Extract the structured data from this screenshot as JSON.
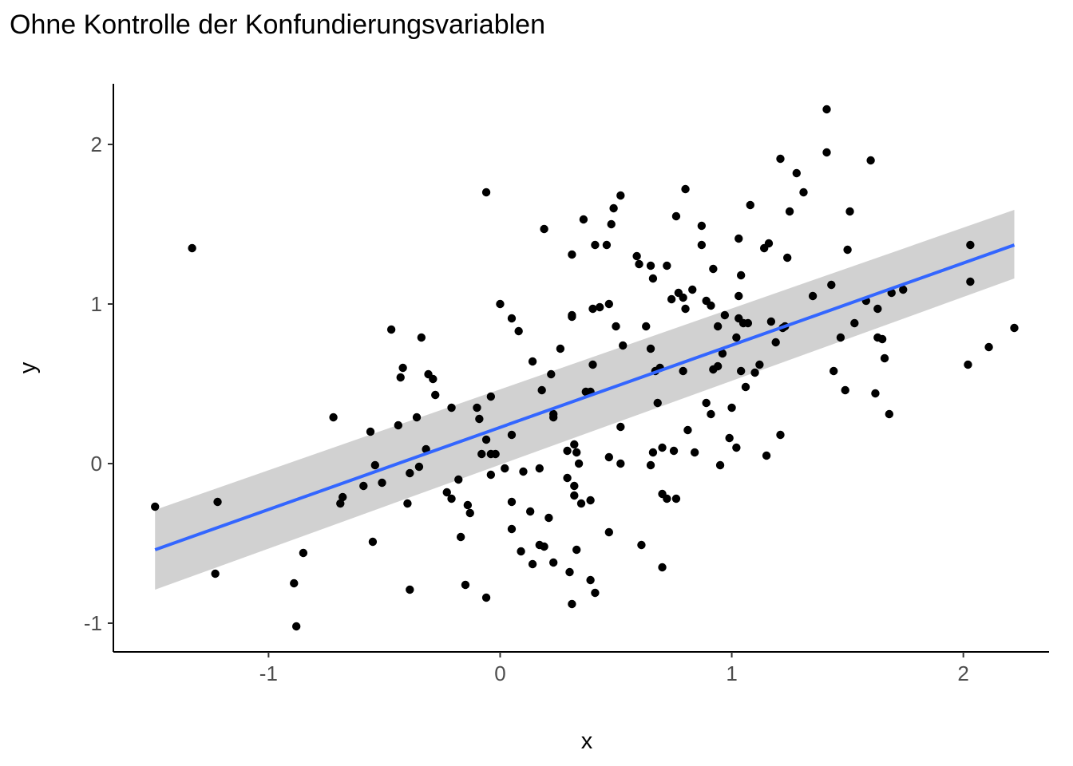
{
  "chart_data": {
    "type": "scatter",
    "title": "Ohne Kontrolle der Konfundierungsvariablen",
    "xlabel": "x",
    "ylabel": "y",
    "xlim": [
      -1.67,
      2.37
    ],
    "ylim": [
      -1.18,
      2.38
    ],
    "x_ticks": [
      -1,
      0,
      1,
      2
    ],
    "x_tick_labels": [
      "-1",
      "0",
      "1",
      "2"
    ],
    "y_ticks": [
      -1,
      0,
      1,
      2
    ],
    "y_tick_labels": [
      "-1",
      "0",
      "1",
      "2"
    ],
    "grid": false,
    "legend": "none",
    "colors": {
      "points": "#000000",
      "fit_line": "#3366ff",
      "ribbon": "#cccccc",
      "axis": "#000000"
    },
    "fit": {
      "method": "lm",
      "x": [
        -1.49,
        2.22
      ],
      "y": [
        -0.54,
        1.37
      ],
      "ci_lower": [
        -0.79,
        1.16
      ],
      "ci_upper": [
        -0.29,
        1.59
      ]
    },
    "points": [
      [
        -1.49,
        -0.27
      ],
      [
        -1.33,
        1.35
      ],
      [
        -1.22,
        -0.24
      ],
      [
        -1.23,
        -0.69
      ],
      [
        -0.89,
        -0.75
      ],
      [
        -0.88,
        -1.02
      ],
      [
        -0.85,
        -0.56
      ],
      [
        -0.72,
        0.29
      ],
      [
        -0.69,
        -0.25
      ],
      [
        -0.68,
        -0.21
      ],
      [
        -0.59,
        -0.14
      ],
      [
        -0.56,
        0.2
      ],
      [
        -0.55,
        -0.49
      ],
      [
        -0.54,
        -0.01
      ],
      [
        -0.51,
        -0.12
      ],
      [
        -0.47,
        0.84
      ],
      [
        -0.44,
        0.24
      ],
      [
        -0.43,
        0.54
      ],
      [
        -0.42,
        0.6
      ],
      [
        -0.4,
        -0.25
      ],
      [
        -0.39,
        -0.06
      ],
      [
        -0.39,
        -0.79
      ],
      [
        -0.36,
        0.29
      ],
      [
        -0.35,
        -0.02
      ],
      [
        -0.34,
        0.79
      ],
      [
        -0.32,
        0.09
      ],
      [
        -0.31,
        0.56
      ],
      [
        -0.29,
        0.53
      ],
      [
        -0.28,
        0.43
      ],
      [
        -0.23,
        -0.18
      ],
      [
        -0.21,
        0.35
      ],
      [
        -0.21,
        -0.22
      ],
      [
        -0.18,
        -0.1
      ],
      [
        -0.17,
        -0.46
      ],
      [
        -0.15,
        -0.76
      ],
      [
        -0.14,
        -0.26
      ],
      [
        -0.13,
        -0.31
      ],
      [
        -0.1,
        0.35
      ],
      [
        -0.09,
        0.28
      ],
      [
        -0.08,
        0.06
      ],
      [
        -0.06,
        0.15
      ],
      [
        -0.06,
        1.7
      ],
      [
        -0.06,
        -0.84
      ],
      [
        -0.04,
        0.06
      ],
      [
        -0.04,
        0.42
      ],
      [
        -0.04,
        -0.07
      ],
      [
        -0.02,
        0.06
      ],
      [
        0.0,
        1.0
      ],
      [
        0.02,
        -0.03
      ],
      [
        0.05,
        0.91
      ],
      [
        0.05,
        -0.41
      ],
      [
        0.05,
        -0.24
      ],
      [
        0.05,
        0.18
      ],
      [
        0.08,
        0.83
      ],
      [
        0.09,
        -0.55
      ],
      [
        0.1,
        -0.05
      ],
      [
        0.13,
        -0.3
      ],
      [
        0.14,
        -0.63
      ],
      [
        0.14,
        0.64
      ],
      [
        0.17,
        -0.03
      ],
      [
        0.17,
        -0.51
      ],
      [
        0.18,
        0.46
      ],
      [
        0.19,
        -0.52
      ],
      [
        0.19,
        1.47
      ],
      [
        0.21,
        -0.34
      ],
      [
        0.22,
        0.56
      ],
      [
        0.23,
        0.29
      ],
      [
        0.23,
        0.31
      ],
      [
        0.23,
        -0.62
      ],
      [
        0.26,
        0.72
      ],
      [
        0.29,
        -0.09
      ],
      [
        0.29,
        0.08
      ],
      [
        0.3,
        -0.68
      ],
      [
        0.31,
        -0.88
      ],
      [
        0.31,
        1.31
      ],
      [
        0.31,
        0.92
      ],
      [
        0.31,
        0.93
      ],
      [
        0.32,
        -0.14
      ],
      [
        0.32,
        -0.2
      ],
      [
        0.32,
        0.12
      ],
      [
        0.33,
        -0.54
      ],
      [
        0.33,
        0.07
      ],
      [
        0.34,
        0.0
      ],
      [
        0.35,
        -0.25
      ],
      [
        0.36,
        1.53
      ],
      [
        0.37,
        0.45
      ],
      [
        0.39,
        -0.73
      ],
      [
        0.39,
        0.45
      ],
      [
        0.39,
        -0.23
      ],
      [
        0.4,
        0.62
      ],
      [
        0.4,
        0.97
      ],
      [
        0.41,
        1.37
      ],
      [
        0.41,
        -0.81
      ],
      [
        0.43,
        0.98
      ],
      [
        0.46,
        1.37
      ],
      [
        0.47,
        0.04
      ],
      [
        0.47,
        1.0
      ],
      [
        0.47,
        -0.43
      ],
      [
        0.48,
        1.5
      ],
      [
        0.49,
        1.6
      ],
      [
        0.5,
        0.86
      ],
      [
        0.52,
        1.68
      ],
      [
        0.52,
        0.23
      ],
      [
        0.52,
        0.0
      ],
      [
        0.53,
        0.74
      ],
      [
        0.59,
        1.3
      ],
      [
        0.6,
        1.25
      ],
      [
        0.61,
        -0.51
      ],
      [
        0.63,
        0.86
      ],
      [
        0.65,
        1.24
      ],
      [
        0.65,
        0.72
      ],
      [
        0.65,
        -0.01
      ],
      [
        0.66,
        1.16
      ],
      [
        0.66,
        0.07
      ],
      [
        0.67,
        0.58
      ],
      [
        0.68,
        0.38
      ],
      [
        0.69,
        0.6
      ],
      [
        0.7,
        -0.65
      ],
      [
        0.7,
        0.1
      ],
      [
        0.7,
        -0.19
      ],
      [
        0.72,
        1.24
      ],
      [
        0.72,
        -0.22
      ],
      [
        0.74,
        1.03
      ],
      [
        0.75,
        0.08
      ],
      [
        0.76,
        1.55
      ],
      [
        0.76,
        -0.22
      ],
      [
        0.77,
        1.07
      ],
      [
        0.79,
        1.04
      ],
      [
        0.79,
        0.58
      ],
      [
        0.8,
        0.97
      ],
      [
        0.8,
        1.72
      ],
      [
        0.81,
        0.21
      ],
      [
        0.83,
        1.09
      ],
      [
        0.84,
        0.07
      ],
      [
        0.87,
        1.49
      ],
      [
        0.87,
        1.37
      ],
      [
        0.89,
        1.02
      ],
      [
        0.89,
        0.38
      ],
      [
        0.91,
        0.31
      ],
      [
        0.91,
        0.99
      ],
      [
        0.92,
        1.22
      ],
      [
        0.92,
        0.59
      ],
      [
        0.94,
        0.61
      ],
      [
        0.94,
        0.86
      ],
      [
        0.95,
        -0.01
      ],
      [
        0.96,
        0.69
      ],
      [
        0.97,
        0.93
      ],
      [
        0.99,
        0.16
      ],
      [
        1.0,
        0.35
      ],
      [
        1.02,
        0.1
      ],
      [
        1.02,
        0.79
      ],
      [
        1.03,
        0.91
      ],
      [
        1.03,
        1.41
      ],
      [
        1.03,
        1.05
      ],
      [
        1.04,
        1.18
      ],
      [
        1.04,
        0.58
      ],
      [
        1.05,
        0.88
      ],
      [
        1.06,
        0.48
      ],
      [
        1.07,
        0.88
      ],
      [
        1.08,
        1.62
      ],
      [
        1.1,
        0.57
      ],
      [
        1.12,
        0.62
      ],
      [
        1.14,
        1.35
      ],
      [
        1.15,
        0.05
      ],
      [
        1.16,
        1.38
      ],
      [
        1.17,
        0.89
      ],
      [
        1.19,
        0.76
      ],
      [
        1.21,
        1.91
      ],
      [
        1.21,
        0.18
      ],
      [
        1.22,
        0.85
      ],
      [
        1.23,
        0.86
      ],
      [
        1.24,
        1.29
      ],
      [
        1.25,
        1.58
      ],
      [
        1.28,
        1.82
      ],
      [
        1.31,
        1.7
      ],
      [
        1.35,
        1.05
      ],
      [
        1.41,
        1.95
      ],
      [
        1.41,
        2.22
      ],
      [
        1.43,
        1.12
      ],
      [
        1.44,
        0.58
      ],
      [
        1.47,
        0.79
      ],
      [
        1.49,
        0.46
      ],
      [
        1.5,
        1.34
      ],
      [
        1.51,
        1.58
      ],
      [
        1.53,
        0.88
      ],
      [
        1.58,
        1.02
      ],
      [
        1.6,
        1.9
      ],
      [
        1.62,
        0.44
      ],
      [
        1.63,
        0.97
      ],
      [
        1.63,
        0.79
      ],
      [
        1.65,
        0.78
      ],
      [
        1.66,
        0.66
      ],
      [
        1.68,
        0.31
      ],
      [
        1.69,
        1.07
      ],
      [
        1.74,
        1.09
      ],
      [
        2.02,
        0.62
      ],
      [
        2.03,
        1.37
      ],
      [
        2.03,
        1.14
      ],
      [
        2.11,
        0.73
      ],
      [
        2.22,
        0.85
      ]
    ]
  }
}
